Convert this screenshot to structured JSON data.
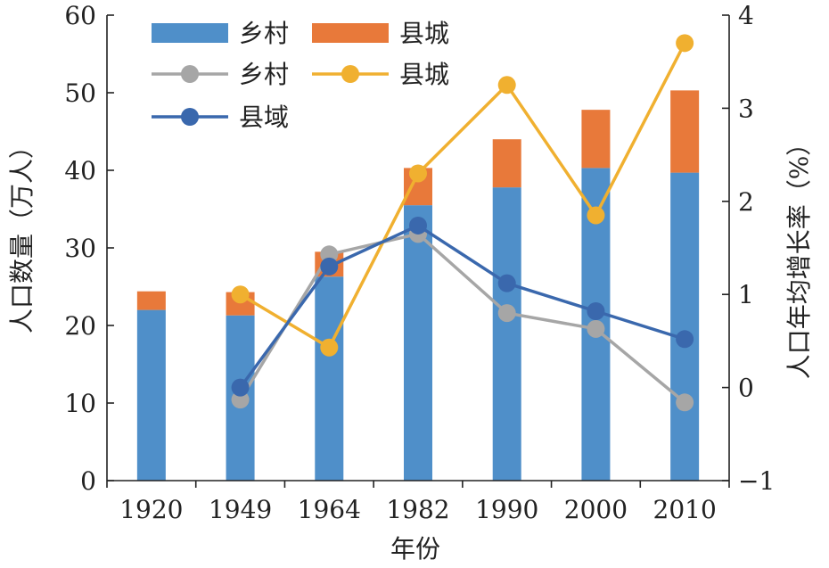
{
  "chart_data": {
    "type": "bar+line",
    "title": "",
    "xlabel": "年份",
    "ylabel_left": "人口数量（万人）",
    "ylabel_right": "人口年均增长率（%）",
    "categories": [
      "1920",
      "1949",
      "1964",
      "1982",
      "1990",
      "2000",
      "2010"
    ],
    "ylim_left": [
      0,
      60
    ],
    "yticks_left": [
      0,
      10,
      20,
      30,
      40,
      50,
      60
    ],
    "ylim_right": [
      -1,
      4
    ],
    "yticks_right": [
      -1,
      0,
      1,
      2,
      3,
      4
    ],
    "grid": false,
    "legend_position": "top-left",
    "bar_series": [
      {
        "name": "乡村",
        "color": "#4f8fc9",
        "values": [
          22.0,
          21.3,
          26.3,
          35.5,
          37.8,
          40.3,
          39.7
        ]
      },
      {
        "name": "县城",
        "color": "#e8793a",
        "values": [
          2.4,
          3.0,
          3.2,
          4.8,
          6.2,
          7.5,
          10.6
        ]
      }
    ],
    "line_series": [
      {
        "name": "乡村",
        "color": "#a6a6a6",
        "values": [
          null,
          -0.13,
          1.43,
          1.65,
          0.8,
          0.63,
          -0.16
        ]
      },
      {
        "name": "县城",
        "color": "#f0b030",
        "values": [
          null,
          1.0,
          0.43,
          2.3,
          3.25,
          1.85,
          3.7
        ]
      },
      {
        "name": "县域",
        "color": "#3a68ad",
        "values": [
          null,
          0.0,
          1.3,
          1.74,
          1.12,
          0.82,
          0.52
        ]
      }
    ],
    "legend_layout": [
      {
        "kind": "bar",
        "series": 0
      },
      {
        "kind": "bar",
        "series": 1
      },
      {
        "kind": "line",
        "series": 0
      },
      {
        "kind": "line",
        "series": 1
      },
      {
        "kind": "line",
        "series": 2
      }
    ]
  }
}
